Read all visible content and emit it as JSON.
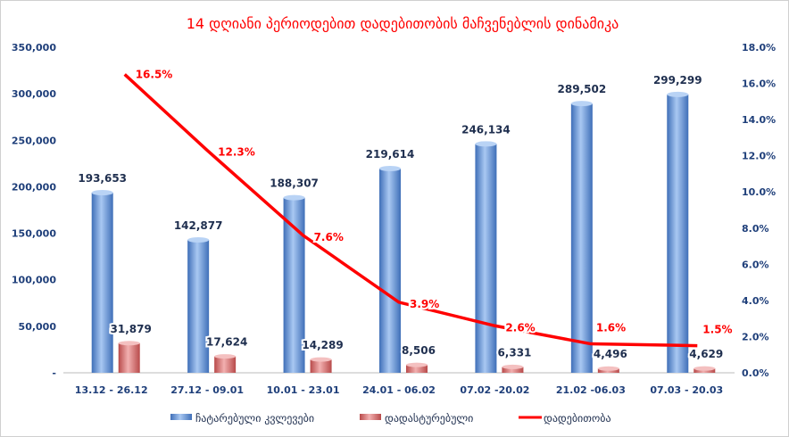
{
  "chart_data": {
    "type": "bar",
    "title": "14 დღიანი პერიოდებით დადებითობის მაჩვენებლის დინამიკა",
    "categories": [
      "13.12 - 26.12",
      "27.12 - 09.01",
      "10.01 - 23.01",
      "24.01 - 06.02",
      "07.02 -20.02",
      "21.02 -06.03",
      "07.03 - 20.03"
    ],
    "series": [
      {
        "name": "ჩატარებული კვლევები",
        "type": "bar",
        "axis": "left",
        "color": "#5b8fd6",
        "values": [
          193653,
          142877,
          188307,
          219614,
          246134,
          289502,
          299299
        ],
        "labels": [
          "193,653",
          "142,877",
          "188,307",
          "219,614",
          "246,134",
          "289,502",
          "299,299"
        ]
      },
      {
        "name": "დადასტურებული",
        "type": "bar",
        "axis": "left",
        "color": "#d46a6a",
        "values": [
          31879,
          17624,
          14289,
          8506,
          6331,
          4496,
          4629
        ],
        "labels": [
          "31,879",
          "17,624",
          "14,289",
          "8,506",
          "6,331",
          "4,496",
          "4,629"
        ]
      },
      {
        "name": "დადებითობა",
        "type": "line",
        "axis": "right",
        "color": "#ff0000",
        "values": [
          16.5,
          12.3,
          7.6,
          3.9,
          2.6,
          1.6,
          1.5
        ],
        "labels": [
          "16.5%",
          "12.3%",
          "7.6%",
          "3.9%",
          "2.6%",
          "1.6%",
          "1.5%"
        ]
      }
    ],
    "y_left": {
      "range": [
        0,
        350000
      ],
      "ticks": [
        "-",
        "50,000",
        "100,000",
        "150,000",
        "200,000",
        "250,000",
        "300,000",
        "350,000"
      ]
    },
    "y_right": {
      "range": [
        0,
        18
      ],
      "ticks": [
        "0.0%",
        "2.0%",
        "4.0%",
        "6.0%",
        "8.0%",
        "10.0%",
        "12.0%",
        "14.0%",
        "16.0%",
        "18.0%"
      ]
    },
    "grid": false,
    "legend": "bottom"
  }
}
